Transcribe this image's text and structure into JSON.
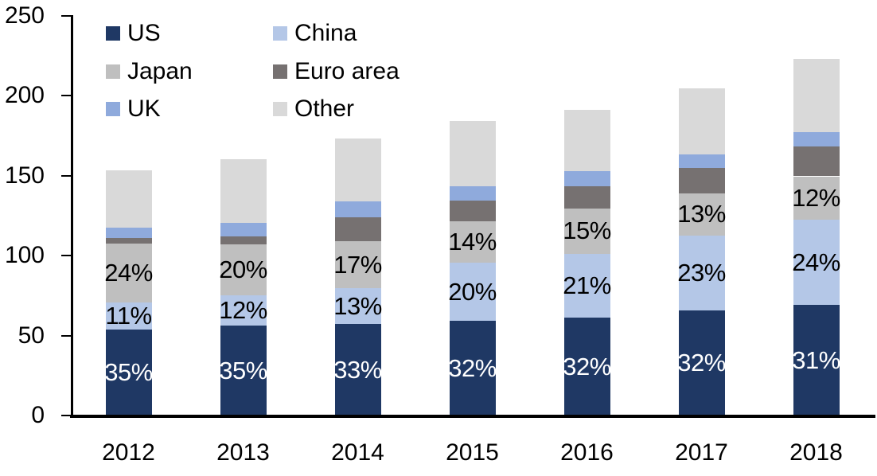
{
  "chart_data": {
    "type": "bar",
    "stacked": true,
    "title": "",
    "xlabel": "",
    "ylabel": "",
    "grid": false,
    "categories": [
      "2012",
      "2013",
      "2014",
      "2015",
      "2016",
      "2017",
      "2018"
    ],
    "series": [
      {
        "name": "US",
        "color": "#1F3864",
        "values": [
          53.5,
          56.0,
          57.0,
          59.0,
          61.0,
          65.5,
          69.0
        ],
        "labels": [
          "35%",
          "35%",
          "33%",
          "32%",
          "32%",
          "32%",
          "31%"
        ],
        "label_color": "#FFFFFF"
      },
      {
        "name": "China",
        "color": "#B4C7E7",
        "values": [
          17.0,
          19.0,
          22.5,
          36.5,
          40.0,
          47.0,
          53.5
        ],
        "labels": [
          "11%",
          "12%",
          "13%",
          "20%",
          "21%",
          "23%",
          "24%"
        ],
        "label_color": "#000000"
      },
      {
        "name": "Japan",
        "color": "#BFBFBF",
        "values": [
          37.0,
          32.0,
          29.5,
          26.0,
          28.5,
          26.5,
          27.0
        ],
        "labels": [
          "24%",
          "20%",
          "17%",
          "14%",
          "15%",
          "13%",
          "12%"
        ],
        "label_color": "#000000"
      },
      {
        "name": "Euro area",
        "color": "#767171",
        "values": [
          3.5,
          5.0,
          15.0,
          13.0,
          14.0,
          15.5,
          18.5
        ],
        "labels": null,
        "label_color": null
      },
      {
        "name": "UK",
        "color": "#8FAADC",
        "values": [
          6.5,
          8.5,
          10.0,
          9.0,
          9.0,
          8.5,
          9.0
        ],
        "labels": null,
        "label_color": null
      },
      {
        "name": "Other",
        "color": "#D9D9D9",
        "values": [
          35.5,
          39.5,
          39.0,
          40.5,
          38.5,
          41.5,
          46.0
        ],
        "labels": null,
        "label_color": null
      }
    ],
    "bar_totals": [
      153,
      160,
      173,
      184,
      191,
      204.5,
      223
    ],
    "ylim": [
      0,
      250
    ],
    "yticks": [
      0,
      50,
      100,
      150,
      200,
      250
    ],
    "legend": {
      "position": "top-left",
      "entries": [
        "US",
        "China",
        "Japan",
        "Euro area",
        "UK",
        "Other"
      ]
    }
  }
}
